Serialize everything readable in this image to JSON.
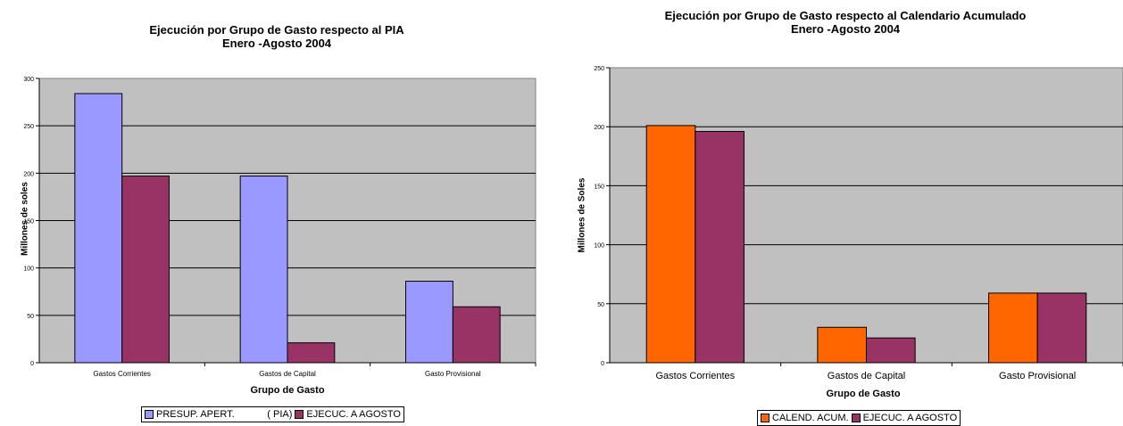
{
  "chart_data": [
    {
      "type": "bar",
      "title": "Ejecución por Grupo de Gasto respecto al PIA",
      "subtitle": "Enero -Agosto 2004",
      "xlabel": "Grupo de Gasto",
      "ylabel": "Millones de soles",
      "categories": [
        "Gastos Corrientes",
        "Gastos de Capital",
        "Gasto Provisional"
      ],
      "yticks": [
        "0",
        "50",
        "100",
        "150",
        "200",
        "250",
        "300"
      ],
      "ylim": [
        0,
        300
      ],
      "grid": true,
      "legend_position": "bottom",
      "series": [
        {
          "name": "PRESUP. APERT.            ( PIA)",
          "color": "#9999ff",
          "values": [
            284,
            197,
            86
          ]
        },
        {
          "name": "EJECUC.  A AGOSTO",
          "color": "#993366",
          "values": [
            197,
            21,
            59
          ]
        }
      ],
      "plot_background": "#c0c0c0"
    },
    {
      "type": "bar",
      "title": "Ejecución por Grupo de Gasto respecto al Calendario Acumulado",
      "subtitle": "Enero -Agosto 2004",
      "xlabel": "Grupo de Gasto",
      "ylabel": "Millones de Soles",
      "categories": [
        "Gastos Corrientes",
        "Gastos de Capital",
        "Gasto Provisional"
      ],
      "yticks": [
        "0",
        "50",
        "100",
        "150",
        "200",
        "250"
      ],
      "ylim": [
        0,
        250
      ],
      "grid": true,
      "legend_position": "bottom",
      "series": [
        {
          "name": "CALEND. ACUM.",
          "color": "#ff6600",
          "values": [
            201,
            30,
            59
          ]
        },
        {
          "name": "EJECUC.  A AGOSTO",
          "color": "#993366",
          "values": [
            196,
            21,
            59
          ]
        }
      ],
      "plot_background": "#c0c0c0"
    }
  ]
}
